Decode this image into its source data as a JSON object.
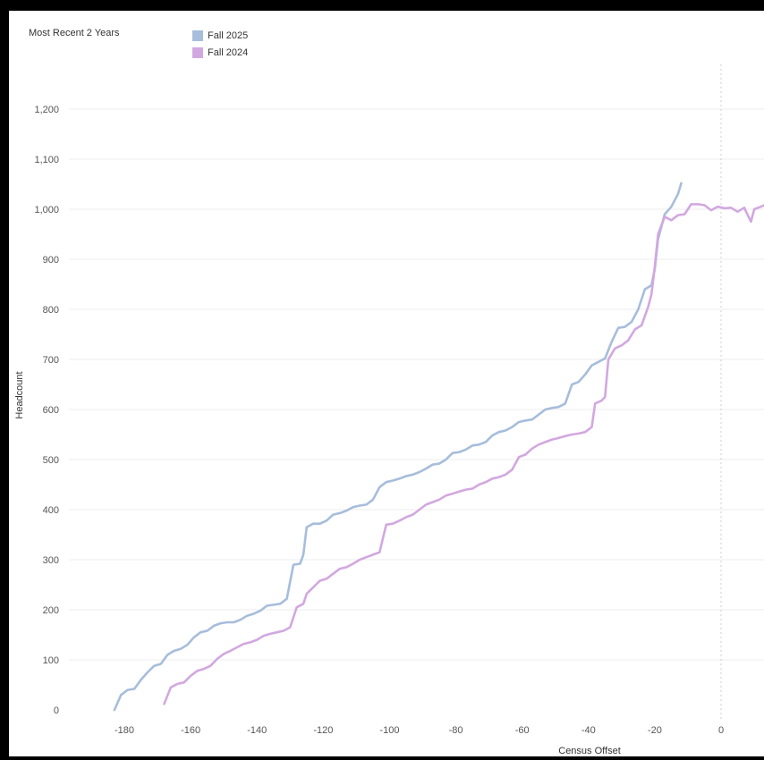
{
  "header": {
    "label": "Most Recent 2 Years"
  },
  "chart_data": {
    "type": "line",
    "xlabel": "Census Offset",
    "ylabel": "Headcount",
    "xlim": [
      -192,
      13
    ],
    "ylim": [
      0,
      1200
    ],
    "x_ticks": [
      -180,
      -160,
      -140,
      -120,
      -100,
      -80,
      -60,
      -40,
      -20,
      0
    ],
    "y_ticks": [
      0,
      100,
      200,
      300,
      400,
      500,
      600,
      700,
      800,
      900,
      1000,
      1100,
      1200
    ],
    "y_tick_labels": [
      "0",
      "100",
      "200",
      "300",
      "400",
      "500",
      "600",
      "700",
      "800",
      "900",
      "1,000",
      "1,100",
      "1,200"
    ],
    "grid": "horizontal",
    "reference_line_x": 0,
    "legend_position": "top-left",
    "series": [
      {
        "name": "Fall 2025",
        "color": "#a6bddb",
        "points": [
          [
            -183,
            0
          ],
          [
            -181,
            30
          ],
          [
            -179,
            40
          ],
          [
            -177,
            42
          ],
          [
            -175,
            60
          ],
          [
            -173,
            75
          ],
          [
            -171,
            88
          ],
          [
            -169,
            92
          ],
          [
            -167,
            110
          ],
          [
            -165,
            118
          ],
          [
            -163,
            122
          ],
          [
            -161,
            130
          ],
          [
            -159,
            145
          ],
          [
            -157,
            155
          ],
          [
            -155,
            158
          ],
          [
            -153,
            168
          ],
          [
            -151,
            173
          ],
          [
            -149,
            175
          ],
          [
            -147,
            175
          ],
          [
            -145,
            180
          ],
          [
            -143,
            188
          ],
          [
            -141,
            192
          ],
          [
            -139,
            198
          ],
          [
            -137,
            208
          ],
          [
            -135,
            210
          ],
          [
            -133,
            212
          ],
          [
            -131,
            222
          ],
          [
            -129,
            290
          ],
          [
            -127,
            292
          ],
          [
            -126,
            310
          ],
          [
            -125,
            365
          ],
          [
            -123,
            372
          ],
          [
            -121,
            372
          ],
          [
            -119,
            378
          ],
          [
            -117,
            390
          ],
          [
            -115,
            393
          ],
          [
            -113,
            398
          ],
          [
            -111,
            405
          ],
          [
            -109,
            408
          ],
          [
            -107,
            410
          ],
          [
            -105,
            420
          ],
          [
            -103,
            445
          ],
          [
            -101,
            455
          ],
          [
            -99,
            458
          ],
          [
            -97,
            462
          ],
          [
            -95,
            467
          ],
          [
            -93,
            470
          ],
          [
            -91,
            475
          ],
          [
            -89,
            482
          ],
          [
            -87,
            490
          ],
          [
            -85,
            492
          ],
          [
            -83,
            500
          ],
          [
            -81,
            513
          ],
          [
            -79,
            515
          ],
          [
            -77,
            520
          ],
          [
            -75,
            528
          ],
          [
            -73,
            530
          ],
          [
            -71,
            535
          ],
          [
            -69,
            548
          ],
          [
            -67,
            555
          ],
          [
            -65,
            558
          ],
          [
            -63,
            565
          ],
          [
            -61,
            575
          ],
          [
            -59,
            578
          ],
          [
            -57,
            580
          ],
          [
            -55,
            590
          ],
          [
            -53,
            600
          ],
          [
            -51,
            603
          ],
          [
            -49,
            605
          ],
          [
            -47,
            612
          ],
          [
            -45,
            650
          ],
          [
            -43,
            655
          ],
          [
            -41,
            670
          ],
          [
            -39,
            688
          ],
          [
            -37,
            695
          ],
          [
            -35,
            702
          ],
          [
            -33,
            735
          ],
          [
            -31,
            763
          ],
          [
            -29,
            765
          ],
          [
            -27,
            775
          ],
          [
            -25,
            800
          ],
          [
            -23,
            840
          ],
          [
            -21,
            848
          ],
          [
            -20,
            880
          ],
          [
            -19,
            940
          ],
          [
            -17,
            990
          ],
          [
            -15,
            1005
          ],
          [
            -13,
            1030
          ],
          [
            -12,
            1052
          ]
        ]
      },
      {
        "name": "Fall 2024",
        "color": "#d2a8e0",
        "points": [
          [
            -168,
            12
          ],
          [
            -166,
            45
          ],
          [
            -164,
            52
          ],
          [
            -162,
            55
          ],
          [
            -160,
            68
          ],
          [
            -158,
            78
          ],
          [
            -156,
            82
          ],
          [
            -154,
            88
          ],
          [
            -152,
            102
          ],
          [
            -150,
            112
          ],
          [
            -148,
            118
          ],
          [
            -146,
            125
          ],
          [
            -144,
            132
          ],
          [
            -142,
            135
          ],
          [
            -140,
            140
          ],
          [
            -138,
            148
          ],
          [
            -136,
            152
          ],
          [
            -134,
            155
          ],
          [
            -132,
            158
          ],
          [
            -130,
            165
          ],
          [
            -128,
            205
          ],
          [
            -126,
            212
          ],
          [
            -125,
            232
          ],
          [
            -123,
            245
          ],
          [
            -121,
            258
          ],
          [
            -119,
            262
          ],
          [
            -117,
            272
          ],
          [
            -115,
            282
          ],
          [
            -113,
            285
          ],
          [
            -111,
            292
          ],
          [
            -109,
            300
          ],
          [
            -107,
            305
          ],
          [
            -105,
            310
          ],
          [
            -103,
            315
          ],
          [
            -101,
            370
          ],
          [
            -99,
            372
          ],
          [
            -97,
            378
          ],
          [
            -95,
            385
          ],
          [
            -93,
            390
          ],
          [
            -91,
            400
          ],
          [
            -89,
            410
          ],
          [
            -87,
            415
          ],
          [
            -85,
            420
          ],
          [
            -83,
            428
          ],
          [
            -81,
            432
          ],
          [
            -79,
            436
          ],
          [
            -77,
            440
          ],
          [
            -75,
            442
          ],
          [
            -73,
            450
          ],
          [
            -71,
            455
          ],
          [
            -69,
            462
          ],
          [
            -67,
            465
          ],
          [
            -65,
            470
          ],
          [
            -63,
            480
          ],
          [
            -61,
            505
          ],
          [
            -59,
            510
          ],
          [
            -57,
            522
          ],
          [
            -55,
            530
          ],
          [
            -53,
            535
          ],
          [
            -51,
            540
          ],
          [
            -49,
            543
          ],
          [
            -47,
            547
          ],
          [
            -45,
            550
          ],
          [
            -43,
            552
          ],
          [
            -41,
            555
          ],
          [
            -39,
            565
          ],
          [
            -38,
            612
          ],
          [
            -36,
            618
          ],
          [
            -35,
            625
          ],
          [
            -34,
            700
          ],
          [
            -32,
            722
          ],
          [
            -30,
            728
          ],
          [
            -28,
            738
          ],
          [
            -26,
            760
          ],
          [
            -24,
            768
          ],
          [
            -22,
            805
          ],
          [
            -21,
            830
          ],
          [
            -20,
            885
          ],
          [
            -19,
            950
          ],
          [
            -17,
            985
          ],
          [
            -15,
            978
          ],
          [
            -13,
            988
          ],
          [
            -11,
            990
          ],
          [
            -9,
            1010
          ],
          [
            -7,
            1010
          ],
          [
            -5,
            1008
          ],
          [
            -3,
            998
          ],
          [
            -1,
            1005
          ],
          [
            1,
            1002
          ],
          [
            3,
            1003
          ],
          [
            5,
            995
          ],
          [
            7,
            1003
          ],
          [
            9,
            975
          ],
          [
            10,
            1000
          ],
          [
            12,
            1005
          ],
          [
            13,
            1008
          ]
        ]
      }
    ]
  }
}
